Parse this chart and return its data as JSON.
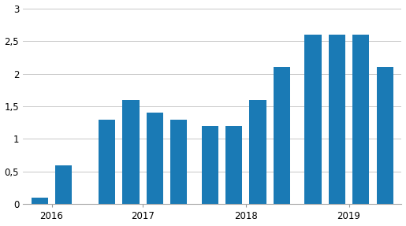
{
  "values": [
    0.1,
    0.6,
    1.3,
    1.6,
    1.4,
    1.3,
    1.2,
    1.2,
    1.6,
    2.1,
    2.6,
    2.6,
    2.6,
    2.1
  ],
  "bar_color": "#1a7ab5",
  "ylim": [
    0,
    3.0
  ],
  "yticks": [
    0,
    0.5,
    1.0,
    1.5,
    2.0,
    2.5,
    3.0
  ],
  "ytick_labels": [
    "0",
    "0,5",
    "1",
    "1,5",
    "2",
    "2,5",
    "3"
  ],
  "year_labels": [
    "2016",
    "2017",
    "2018",
    "2019"
  ],
  "background_color": "#ffffff",
  "grid_color": "#c8c8c8",
  "figsize": [
    5.15,
    2.87
  ],
  "dpi": 100
}
